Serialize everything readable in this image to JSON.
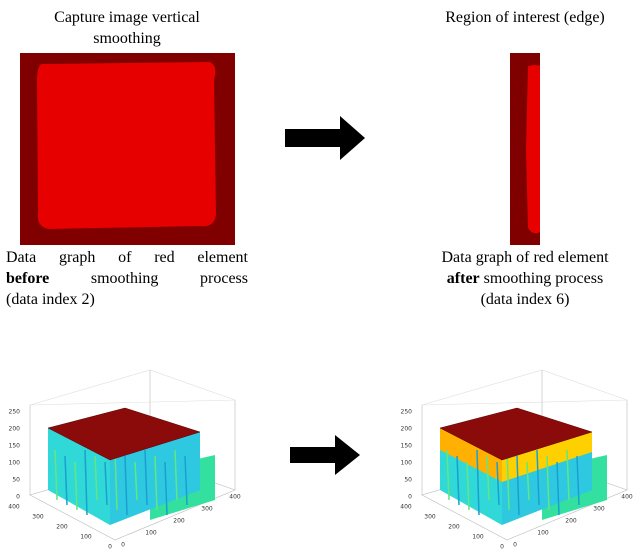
{
  "panels": [
    {
      "title": "Capture image vertical smoothing",
      "caption": {
        "line1": "Data graph of red element",
        "emphasis": "before",
        "rest": "smoothing process",
        "index": "(data index 2)"
      }
    },
    {
      "title": "Region of interest (edge)",
      "caption": {
        "line1": "Data graph of red element",
        "emphasis": "after",
        "rest": "smoothing process",
        "index": "(data index 6)"
      }
    }
  ],
  "plots": [
    {
      "z_ticks": [
        0,
        50,
        100,
        150,
        200,
        250
      ],
      "y_ticks": [
        400,
        300,
        200,
        100,
        0
      ],
      "x_ticks": [
        0,
        100,
        200,
        300,
        400
      ]
    },
    {
      "z_ticks": [
        0,
        50,
        100,
        150,
        200,
        250
      ],
      "y_ticks": [
        400,
        300,
        200,
        100,
        0
      ],
      "x_ticks": [
        0,
        100,
        200,
        300,
        400
      ]
    }
  ]
}
